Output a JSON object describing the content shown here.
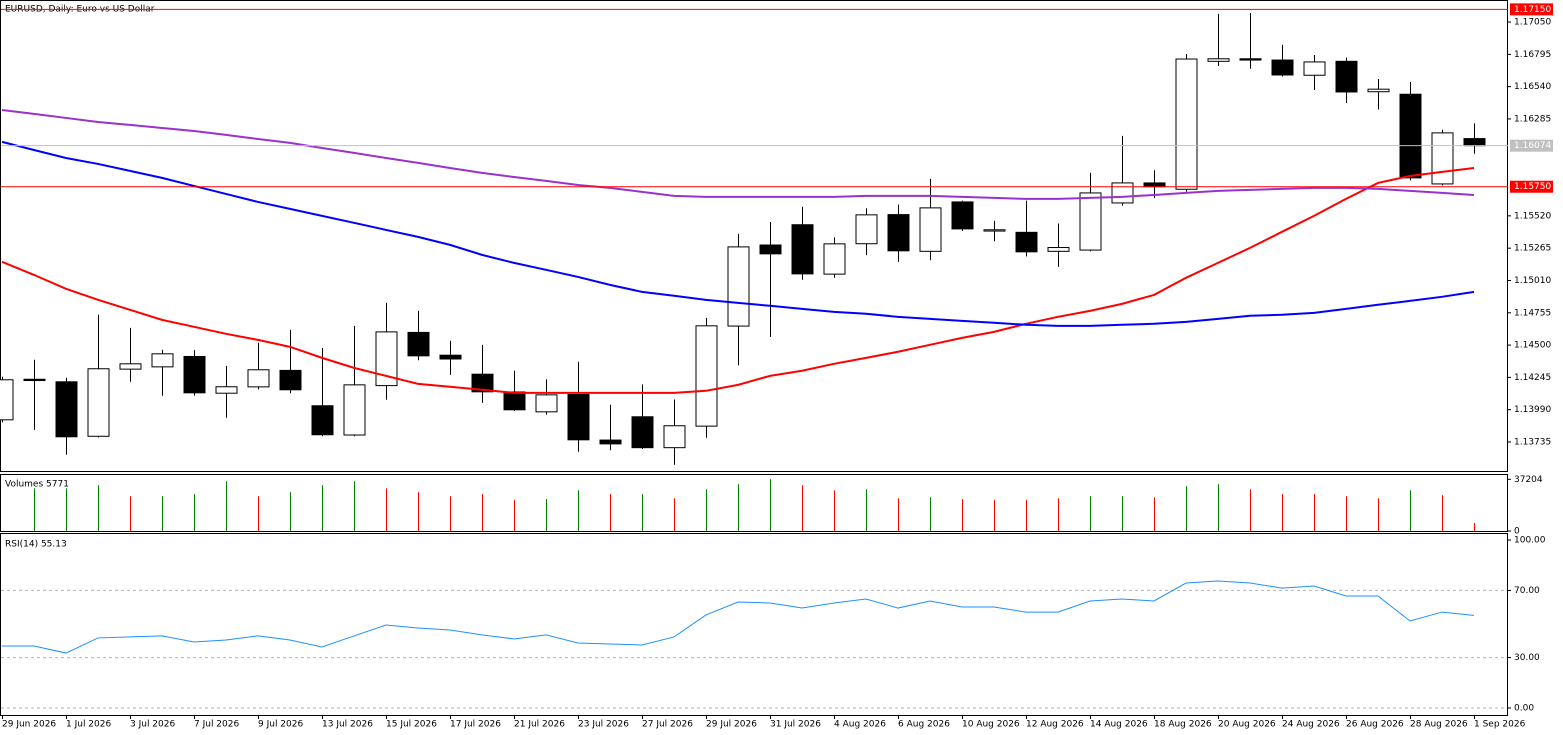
{
  "chart_data": [
    {
      "type": "candlestick",
      "title": "EURUSD, Daily:  Euro vs US Dollar",
      "categories": [
        "29 Jun 2026",
        null,
        "1 Jul 2026",
        null,
        "3 Jul 2026",
        null,
        "7 Jul 2026",
        null,
        "9 Jul 2026",
        null,
        "13 Jul 2026",
        null,
        "15 Jul 2026",
        null,
        "17 Jul 2026",
        null,
        "21 Jul 2026",
        null,
        "23 Jul 2026",
        null,
        "27 Jul 2026",
        null,
        "29 Jul 2026",
        null,
        "31 Jul 2026",
        null,
        "4 Aug 2026",
        null,
        "6 Aug 2026",
        null,
        "10 Aug 2026",
        null,
        "12 Aug 2026",
        null,
        "14 Aug 2026",
        null,
        "18 Aug 2026",
        null,
        "20 Aug 2026",
        null,
        "24 Aug 2026",
        null,
        "26 Aug 2026",
        null,
        "28 Aug 2026",
        null,
        "1 Sep 2026"
      ],
      "open": [
        1.1391,
        1.1423,
        1.1421,
        1.1378,
        1.1431,
        1.14328,
        1.1441,
        1.1412,
        1.1417,
        1.143,
        1.14021,
        1.1379,
        1.1418,
        1.146,
        1.1442,
        1.1427,
        1.1413,
        1.13973,
        1.1411,
        1.1375,
        1.13934,
        1.1369,
        1.1386,
        1.1465,
        1.1529,
        1.1545,
        1.1506,
        1.153,
        1.1553,
        1.1524,
        1.1563,
        1.154,
        1.1539,
        1.1524,
        1.1525,
        1.15622,
        1.1578,
        1.1573,
        1.1674,
        1.1676,
        1.1675,
        1.1663,
        1.1674,
        1.165,
        1.1648,
        1.15772,
        1.1613
      ],
      "high": [
        1.1425,
        1.14384,
        1.14242,
        1.14739,
        1.14636,
        1.14463,
        1.1446,
        1.14336,
        1.14518,
        1.1462,
        1.14478,
        1.14652,
        1.14833,
        1.1477,
        1.14533,
        1.14502,
        1.14297,
        1.1423,
        1.14368,
        1.14029,
        1.1419,
        1.1407,
        1.14715,
        1.15378,
        1.15472,
        1.15591,
        1.1535,
        1.1558,
        1.1561,
        1.15812,
        1.1564,
        1.1548,
        1.1564,
        1.1546,
        1.15859,
        1.16151,
        1.1588,
        1.16798,
        1.17114,
        1.17121,
        1.1687,
        1.1679,
        1.1677,
        1.166,
        1.16577,
        1.162,
        1.1625
      ],
      "low": [
        1.1389,
        1.13831,
        1.13634,
        1.1377,
        1.1421,
        1.141,
        1.141,
        1.13926,
        1.1415,
        1.1412,
        1.1378,
        1.1378,
        1.14068,
        1.1438,
        1.14265,
        1.14044,
        1.1398,
        1.1395,
        1.13658,
        1.1367,
        1.1368,
        1.13555,
        1.13768,
        1.1434,
        1.14565,
        1.15015,
        1.1503,
        1.1521,
        1.15157,
        1.1517,
        1.154,
        1.1532,
        1.152,
        1.15117,
        1.1524,
        1.156,
        1.1566,
        1.1571,
        1.16703,
        1.1668,
        1.1662,
        1.16514,
        1.16411,
        1.1636,
        1.158,
        1.1576,
        1.1601
      ],
      "close": [
        1.14226,
        1.1422,
        1.13776,
        1.14313,
        1.14352,
        1.14431,
        1.14123,
        1.14171,
        1.14305,
        1.14147,
        1.13792,
        1.14186,
        1.14604,
        1.14415,
        1.1439,
        1.14131,
        1.13989,
        1.14107,
        1.13752,
        1.1372,
        1.1369,
        1.13863,
        1.14652,
        1.15275,
        1.1522,
        1.15062,
        1.15299,
        1.15528,
        1.15244,
        1.15583,
        1.15417,
        1.1541,
        1.15236,
        1.1527,
        1.15701,
        1.1578,
        1.1575,
        1.16758,
        1.1676,
        1.1675,
        1.16632,
        1.16735,
        1.16498,
        1.1652,
        1.1582,
        1.16175,
        1.16074
      ],
      "series": [
        {
          "color": "#ff0000",
          "values": [
            1.15157,
            1.15054,
            1.14944,
            1.14857,
            1.14778,
            1.14699,
            1.14644,
            1.14589,
            1.14541,
            1.14486,
            1.14399,
            1.1432,
            1.14257,
            1.14194,
            1.14171,
            1.14147,
            1.14123,
            1.14123,
            1.14123,
            1.14123,
            1.14123,
            1.14123,
            1.14139,
            1.14186,
            1.14257,
            1.14297,
            1.14352,
            1.14399,
            1.14447,
            1.14502,
            1.14557,
            1.14604,
            1.14668,
            1.14723,
            1.1477,
            1.14825,
            1.14896,
            1.15031,
            1.15149,
            1.15267,
            1.15394,
            1.1552,
            1.15654,
            1.1578,
            1.15835,
            1.15867,
            1.15898
          ]
        },
        {
          "color": "#0000ff",
          "values": [
            1.16104,
            1.1604,
            1.15977,
            1.1593,
            1.15875,
            1.1582,
            1.15756,
            1.15693,
            1.1563,
            1.15575,
            1.1552,
            1.15465,
            1.15409,
            1.15354,
            1.15291,
            1.15212,
            1.15149,
            1.15094,
            1.15038,
            1.14975,
            1.1492,
            1.14889,
            1.14857,
            1.14833,
            1.1481,
            1.14786,
            1.14762,
            1.14747,
            1.14723,
            1.14707,
            1.14691,
            1.14676,
            1.1466,
            1.14652,
            1.14652,
            1.1466,
            1.14668,
            1.14683,
            1.14707,
            1.14731,
            1.14739,
            1.14754,
            1.14786,
            1.14818,
            1.14849,
            1.14881,
            1.1492
          ]
        },
        {
          "color": "#9932cc",
          "values": [
            1.16356,
            1.16325,
            1.16293,
            1.16261,
            1.16238,
            1.16214,
            1.1619,
            1.16159,
            1.16127,
            1.16096,
            1.16056,
            1.16017,
            1.15977,
            1.15938,
            1.15898,
            1.15859,
            1.15827,
            1.15796,
            1.15764,
            1.15741,
            1.15709,
            1.15678,
            1.1567,
            1.1567,
            1.1567,
            1.1567,
            1.1567,
            1.15678,
            1.15678,
            1.15678,
            1.1567,
            1.15662,
            1.15654,
            1.15654,
            1.15662,
            1.1567,
            1.15685,
            1.15701,
            1.15717,
            1.15725,
            1.15733,
            1.15741,
            1.15741,
            1.15733,
            1.15717,
            1.15701,
            1.15685
          ]
        }
      ],
      "hlines": [
        {
          "value": 1.1715,
          "label": "1.17150",
          "color": "#ff0000"
        },
        {
          "value": 1.1575,
          "label": "1.15750",
          "color": "#ff0000"
        },
        {
          "value": 1.16074,
          "label": "1.16074",
          "color": "#c0c0c0"
        }
      ],
      "ylim": [
        1.13498,
        1.17224
      ],
      "yticks": [
        {
          "value": 1.1705,
          "label": "1.17050"
        },
        1.16795,
        {
          "value": 1.1654,
          "label": "1.16540"
        },
        1.16285,
        {
          "value": 1.1552,
          "label": "1.15520"
        },
        1.15265,
        {
          "value": 1.1501,
          "label": "1.15010"
        },
        1.14755,
        {
          "value": 1.145,
          "label": "1.14500"
        },
        1.14245,
        {
          "value": 1.1399,
          "label": "1.13990"
        },
        1.13735
      ]
    },
    {
      "type": "bar",
      "title": "Volumes 5771",
      "values": [
        null,
        30700,
        30700,
        32900,
        25000,
        25000,
        26500,
        35800,
        25000,
        27900,
        32900,
        35800,
        30700,
        27900,
        25000,
        26500,
        22200,
        22900,
        29300,
        26500,
        26500,
        23600,
        30000,
        33600,
        37204,
        32900,
        29300,
        30000,
        23600,
        24300,
        22900,
        22200,
        22200,
        23600,
        25000,
        25000,
        24300,
        32200,
        33600,
        30000,
        26500,
        26500,
        25000,
        23600,
        29300,
        25700,
        5771
      ],
      "colors": [
        null,
        "#008000",
        "#008000",
        "#008000",
        "#ff0000",
        "#008000",
        "#008000",
        "#008000",
        "#ff0000",
        "#008000",
        "#008000",
        "#008000",
        "#ff0000",
        "#ff0000",
        "#ff0000",
        "#ff0000",
        "#ff0000",
        "#008000",
        "#008000",
        "#ff0000",
        "#008000",
        "#ff0000",
        "#008000",
        "#008000",
        "#008000",
        "#ff0000",
        "#ff0000",
        "#008000",
        "#ff0000",
        "#008000",
        "#ff0000",
        "#ff0000",
        "#ff0000",
        "#ff0000",
        "#008000",
        "#008000",
        "#ff0000",
        "#008000",
        "#008000",
        "#ff0000",
        "#ff0000",
        "#ff0000",
        "#ff0000",
        "#ff0000",
        "#008000",
        "#ff0000",
        "#ff0000"
      ],
      "ylim": [
        0,
        41000
      ],
      "yticks": [
        37204,
        0
      ]
    },
    {
      "type": "line",
      "title": "RSI(14) 55.13",
      "color": "#1e90ff",
      "values": [
        36.9,
        36.9,
        32.7,
        41.7,
        42.3,
        42.9,
        39.3,
        40.5,
        42.9,
        40.5,
        36.3,
        42.9,
        49.4,
        47.6,
        46.4,
        43.5,
        41.1,
        43.5,
        38.7,
        38.1,
        37.5,
        42.3,
        55.4,
        63.1,
        62.5,
        59.5,
        62.5,
        64.9,
        59.5,
        63.7,
        60.1,
        60.1,
        57.1,
        57.1,
        63.7,
        64.9,
        63.7,
        74.4,
        75.6,
        74.4,
        71.4,
        72.6,
        66.7,
        66.7,
        51.8,
        57.1,
        55.13
      ],
      "ylim": [
        -4.2,
        104.2
      ],
      "grid": true,
      "yticks": [
        {
          "value": 100,
          "label": "100.00"
        },
        {
          "value": 70,
          "label": "70.00"
        },
        {
          "value": 30,
          "label": "30.00"
        },
        {
          "value": 0,
          "label": "0.00"
        }
      ]
    }
  ]
}
